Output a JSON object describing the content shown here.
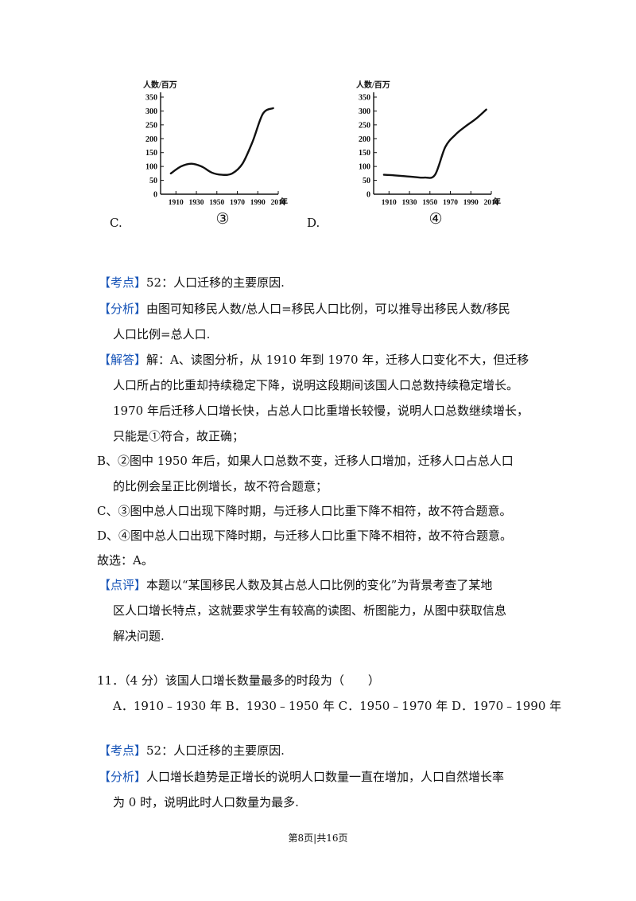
{
  "chart_data": [
    {
      "type": "line",
      "label": "③",
      "ylabel": "人数/百万",
      "xlabel": "年",
      "x_ticks": [
        "1910",
        "1930",
        "1950",
        "1970",
        "1990",
        "2010"
      ],
      "y_ticks": [
        "0",
        "50",
        "100",
        "150",
        "200",
        "250",
        "300",
        "350"
      ],
      "ylim": [
        0,
        350
      ],
      "xlim": [
        1895,
        2010
      ],
      "x": [
        1905,
        1915,
        1925,
        1935,
        1945,
        1955,
        1965,
        1975,
        1985,
        1995,
        2005
      ],
      "values": [
        75,
        100,
        110,
        100,
        78,
        70,
        75,
        110,
        190,
        290,
        310
      ]
    },
    {
      "type": "line",
      "label": "④",
      "ylabel": "人数/百万",
      "xlabel": "年",
      "x_ticks": [
        "1910",
        "1930",
        "1950",
        "1970",
        "1990",
        "2010"
      ],
      "y_ticks": [
        "0",
        "50",
        "100",
        "150",
        "200",
        "250",
        "300",
        "350"
      ],
      "ylim": [
        0,
        350
      ],
      "xlim": [
        1895,
        2010
      ],
      "x": [
        1905,
        1915,
        1925,
        1935,
        1945,
        1955,
        1965,
        1975,
        1985,
        1995,
        2005
      ],
      "values": [
        70,
        68,
        65,
        62,
        60,
        70,
        170,
        215,
        245,
        272,
        305
      ]
    }
  ],
  "choices": {
    "c": "C.",
    "d": "D."
  },
  "kaodian1": {
    "tag": "【考点】",
    "text": "52：人口迁移的主要原因."
  },
  "fenxi1": {
    "tag": "【分析】",
    "line1": "由图可知移民人数/总人口=移民人口比例，可以推导出移民人数/移民",
    "line2": "人口比例=总人口."
  },
  "jieda": {
    "tag": "【解答】",
    "line1": "解：A、读图分析，从 1910 年到 1970 年，迁移人口变化不大，但迁移",
    "line2": "人口所占的比重却持续稳定下降，说明这段期间该国人口总数持续稳定增长。",
    "line3": "1970 年后迁移人口增长快，占总人口比重增长较慢，说明人口总数继续增长，",
    "line4": "只能是①符合，故正确；",
    "b1": "B、②图中 1950 年后，如果人口总数不变，迁移人口增加，迁移人口占总人口",
    "b2": "的比例会呈正比例增长，故不符合题意；",
    "c": "C、③图中总人口出现下降时期，与迁移人口比重下降不相符，故不符合题意。",
    "d": "D、④图中总人口出现下降时期，与迁移人口比重下降不相符，故不符合题意。",
    "answer": "故选：A。"
  },
  "dianping": {
    "tag": "【点评】",
    "line1": "本题以“某国移民人数及其占总人口比例的变化”为背景考查了某地",
    "line2": "区人口增长特点，这就要求学生有较高的读图、析图能力，从图中获取信息",
    "line3": "解决问题."
  },
  "question11": {
    "stem": "11．（4 分）该国人口增长数量最多的时段为（　　）",
    "options": "A．1910﹣1930 年  B．1930﹣1950 年   C．1950﹣1970 年  D．1970﹣1990 年"
  },
  "kaodian2": {
    "tag": "【考点】",
    "text": "52：人口迁移的主要原因."
  },
  "fenxi2": {
    "tag": "【分析】",
    "line1": "人口增长趋势是正增长的说明人口数量一直在增加，人口自然增长率",
    "line2": "为 0 时，说明此时人口数量为最多."
  },
  "footer": "第8页|共16页"
}
